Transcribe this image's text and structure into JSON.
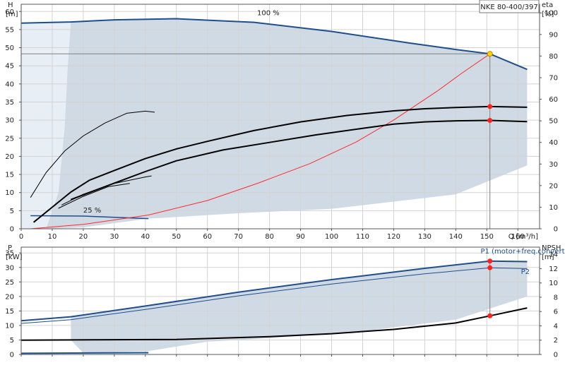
{
  "chart_data": [
    {
      "type": "line",
      "title": "NKE 80-400/397",
      "y_axis_left": {
        "label_top": "H",
        "unit": "[m]",
        "range": [
          0,
          62
        ],
        "ticks": [
          0,
          5,
          10,
          15,
          20,
          25,
          30,
          35,
          40,
          45,
          50,
          55,
          60
        ]
      },
      "y_axis_right": {
        "label_top": "eta",
        "unit": "[%]",
        "range": [
          0,
          104
        ],
        "ticks": [
          0,
          10,
          20,
          30,
          40,
          50,
          60,
          70,
          80,
          90,
          100
        ]
      },
      "x_axis": {
        "label": "Q [m³/h]",
        "range": [
          0,
          167
        ],
        "ticks": [
          0,
          10,
          20,
          30,
          40,
          50,
          60,
          70,
          80,
          90,
          100,
          110,
          120,
          130,
          140,
          150,
          160
        ]
      },
      "grid": true,
      "annotations": [
        {
          "text": "100 %",
          "x": 76,
          "y": 59
        },
        {
          "text": "25 %",
          "x": 20,
          "y": 4.5
        }
      ],
      "operating_point": {
        "q": 151,
        "h": 48.3
      },
      "series": [
        {
          "axis": "left",
          "color": "#1f4e8c",
          "width": 2,
          "points": [
            [
              0,
              56.8
            ],
            [
              16,
              57.1
            ],
            [
              30,
              57.7
            ],
            [
              50,
              58
            ],
            [
              75,
              57
            ],
            [
              100,
              54.5
            ],
            [
              125,
              51.3
            ],
            [
              140,
              49.5
            ],
            [
              151,
              48.3
            ],
            [
              163,
              44
            ]
          ]
        },
        {
          "axis": "left",
          "color": "#1f4e8c",
          "width": 1.5,
          "points": [
            [
              3,
              3.6
            ],
            [
              20,
              3.5
            ],
            [
              41,
              2.8
            ]
          ]
        },
        {
          "axis": "left",
          "color": "#ff2a2a",
          "width": 1,
          "points": [
            [
              3,
              0
            ],
            [
              20,
              1.2
            ],
            [
              41,
              3.8
            ],
            [
              60,
              7.8
            ],
            [
              76,
              12.5
            ],
            [
              93,
              18
            ],
            [
              108,
              24
            ],
            [
              120,
              30
            ],
            [
              134,
              38
            ],
            [
              142,
              43
            ],
            [
              151,
              48.3
            ]
          ]
        },
        {
          "axis": "right",
          "color": "#000000",
          "width": 2,
          "points": [
            [
              4,
              3
            ],
            [
              10,
              10
            ],
            [
              16,
              17
            ],
            [
              22,
              22.5
            ],
            [
              30,
              27
            ],
            [
              40,
              32.5
            ],
            [
              50,
              37
            ],
            [
              60,
              40.5
            ],
            [
              75,
              45.5
            ],
            [
              90,
              49.5
            ],
            [
              105,
              52.5
            ],
            [
              120,
              54.6
            ],
            [
              130,
              55.6
            ],
            [
              140,
              56.2
            ],
            [
              151,
              56.6
            ],
            [
              163,
              56.3
            ]
          ]
        },
        {
          "axis": "right",
          "color": "#000000",
          "width": 2,
          "points": [
            [
              16,
              13.5
            ],
            [
              26,
              19
            ],
            [
              40,
              26.5
            ],
            [
              50,
              31.5
            ],
            [
              65,
              36.5
            ],
            [
              80,
              40
            ],
            [
              95,
              43.5
            ],
            [
              110,
              46.5
            ],
            [
              120,
              48.5
            ],
            [
              130,
              49.5
            ],
            [
              140,
              50
            ],
            [
              151,
              50.2
            ],
            [
              163,
              49.6
            ]
          ]
        },
        {
          "axis": "right",
          "color": "#000000",
          "width": 1,
          "points": [
            [
              13,
              11
            ],
            [
              20,
              16
            ],
            [
              30,
              21
            ],
            [
              40,
              24
            ],
            [
              42,
              24.5
            ]
          ]
        },
        {
          "axis": "right",
          "color": "#000000",
          "width": 1,
          "points": [
            [
              12,
              9.5
            ],
            [
              20,
              15
            ],
            [
              28,
              19.5
            ],
            [
              35,
              21
            ]
          ]
        },
        {
          "axis": "right",
          "color": "#000000",
          "width": 1,
          "points": [
            [
              3,
              14.5
            ],
            [
              8,
              26
            ],
            [
              14,
              36
            ],
            [
              20,
              43
            ],
            [
              27,
              49
            ],
            [
              34,
              53.5
            ],
            [
              40,
              54.5
            ],
            [
              43,
              54
            ]
          ]
        }
      ],
      "markers": [
        {
          "axis": "right",
          "q": 151,
          "value": 56.6,
          "color": "#ff2020"
        },
        {
          "axis": "right",
          "q": 151,
          "value": 50.2,
          "color": "#ff2020"
        },
        {
          "axis": "left",
          "q": 151,
          "value": 48.3,
          "color": "#ffd700"
        }
      ]
    },
    {
      "type": "line",
      "y_axis_left": {
        "label_top": "P",
        "unit": "[kW]",
        "range": [
          0,
          37
        ],
        "ticks": [
          0,
          5,
          10,
          15,
          20,
          25,
          30,
          35
        ]
      },
      "y_axis_right": {
        "label_top": "NPSH",
        "unit": "[m]",
        "range": [
          0,
          15
        ],
        "ticks": [
          0,
          2,
          4,
          6,
          8,
          10,
          12,
          14
        ]
      },
      "x_axis": {
        "range": [
          0,
          167
        ],
        "ticks": [
          0,
          10,
          20,
          30,
          40,
          50,
          60,
          70,
          80,
          90,
          100,
          110,
          120,
          130,
          140,
          150,
          160
        ]
      },
      "grid": true,
      "annotations": [
        {
          "text": "P1 (motor+freq.converter)",
          "x": 148,
          "y": 34.8
        },
        {
          "text": "P2",
          "x": 161,
          "y": 27.8
        }
      ],
      "series": [
        {
          "name": "P1 (motor+freq.converter)",
          "axis": "left",
          "color": "#1f4e8c",
          "width": 2,
          "points": [
            [
              0,
              11.6
            ],
            [
              16,
              13
            ],
            [
              40,
              16.7
            ],
            [
              70,
              21.5
            ],
            [
              100,
              25.8
            ],
            [
              130,
              29.7
            ],
            [
              151,
              32.2
            ],
            [
              163,
              32
            ]
          ]
        },
        {
          "name": "P2",
          "axis": "left",
          "color": "#1f4e8c",
          "width": 1,
          "points": [
            [
              0,
              10.7
            ],
            [
              16,
              12
            ],
            [
              40,
              15.5
            ],
            [
              70,
              20.2
            ],
            [
              100,
              24.3
            ],
            [
              130,
              27.8
            ],
            [
              151,
              29.9
            ],
            [
              163,
              29.6
            ]
          ]
        },
        {
          "axis": "left",
          "color": "#1f4e8c",
          "width": 2,
          "points": [
            [
              0,
              0.4
            ],
            [
              41,
              0.6
            ]
          ]
        },
        {
          "axis": "right",
          "color": "#000000",
          "width": 2,
          "points": [
            [
              0,
              2
            ],
            [
              50,
              2.1
            ],
            [
              80,
              2.5
            ],
            [
              100,
              2.9
            ],
            [
              120,
              3.5
            ],
            [
              140,
              4.4
            ],
            [
              151,
              5.4
            ],
            [
              163,
              6.5
            ]
          ]
        }
      ],
      "markers": [
        {
          "axis": "left",
          "q": 151,
          "value": 32.2,
          "color": "#ff2020"
        },
        {
          "axis": "left",
          "q": 151,
          "value": 29.9,
          "color": "#ff2020"
        },
        {
          "axis": "right",
          "q": 151,
          "value": 5.4,
          "color": "#ff2020"
        }
      ]
    }
  ]
}
